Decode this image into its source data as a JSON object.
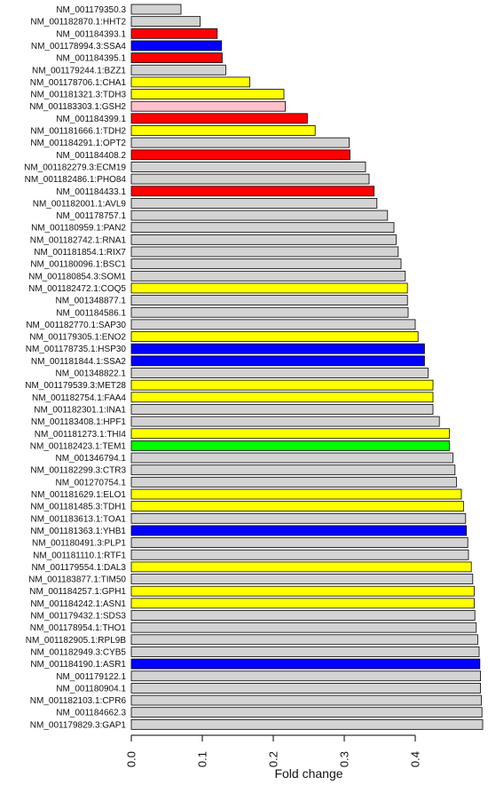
{
  "chart_data": {
    "type": "bar",
    "orientation": "horizontal",
    "xlabel": "Fold change",
    "xlim": [
      0,
      0.5
    ],
    "xticks": [
      "0.0",
      "0.1",
      "0.2",
      "0.3",
      "0.4"
    ],
    "grid": false,
    "legend": "none",
    "colors": {
      "gray": "#d3d3d3",
      "red": "#ff0000",
      "blue": "#0000ff",
      "yellow": "#ffff00",
      "pink": "#ffc0cb",
      "green": "#00ff00"
    },
    "bars": [
      {
        "label": "NM_001179350.3",
        "value": 0.07,
        "color": "gray"
      },
      {
        "label": "NM_001182870.1:HHT2",
        "value": 0.097,
        "color": "gray"
      },
      {
        "label": "NM_001184393.1",
        "value": 0.121,
        "color": "red"
      },
      {
        "label": "NM_001178994.3:SSA4",
        "value": 0.127,
        "color": "blue"
      },
      {
        "label": "NM_001184395.1",
        "value": 0.128,
        "color": "red"
      },
      {
        "label": "NM_001179244.1:BZZ1",
        "value": 0.133,
        "color": "gray"
      },
      {
        "label": "NM_001178706.1:CHA1",
        "value": 0.167,
        "color": "yellow"
      },
      {
        "label": "NM_001181321.3:TDH3",
        "value": 0.215,
        "color": "yellow"
      },
      {
        "label": "NM_001183303.1:GSH2",
        "value": 0.217,
        "color": "pink"
      },
      {
        "label": "NM_001184399.1",
        "value": 0.248,
        "color": "red"
      },
      {
        "label": "NM_001181666.1:TDH2",
        "value": 0.259,
        "color": "yellow"
      },
      {
        "label": "NM_001184291.1:OPT2",
        "value": 0.307,
        "color": "gray"
      },
      {
        "label": "NM_001184408.2",
        "value": 0.308,
        "color": "red"
      },
      {
        "label": "NM_001182279.3:ECM19",
        "value": 0.33,
        "color": "gray"
      },
      {
        "label": "NM_001182486.1:PHO84",
        "value": 0.335,
        "color": "gray"
      },
      {
        "label": "NM_001184433.1",
        "value": 0.342,
        "color": "red"
      },
      {
        "label": "NM_001182001.1:AVL9",
        "value": 0.346,
        "color": "gray"
      },
      {
        "label": "NM_001178757.1",
        "value": 0.361,
        "color": "gray"
      },
      {
        "label": "NM_001180959.1:PAN2",
        "value": 0.37,
        "color": "gray"
      },
      {
        "label": "NM_001182742.1:RNA1",
        "value": 0.373,
        "color": "gray"
      },
      {
        "label": "NM_001181854.1:RIX7",
        "value": 0.376,
        "color": "gray"
      },
      {
        "label": "NM_001180096.1:BSC1",
        "value": 0.38,
        "color": "gray"
      },
      {
        "label": "NM_001180854.3:SOM1",
        "value": 0.386,
        "color": "gray"
      },
      {
        "label": "NM_001182472.1:COQ5",
        "value": 0.389,
        "color": "yellow"
      },
      {
        "label": "NM_001348877.1",
        "value": 0.389,
        "color": "gray"
      },
      {
        "label": "NM_001184586.1",
        "value": 0.39,
        "color": "gray"
      },
      {
        "label": "NM_001182770.1:SAP30",
        "value": 0.4,
        "color": "gray"
      },
      {
        "label": "NM_001179305.1:ENO2",
        "value": 0.404,
        "color": "yellow"
      },
      {
        "label": "NM_001178735.1:HSP30",
        "value": 0.413,
        "color": "blue"
      },
      {
        "label": "NM_001181844.1:SSA2",
        "value": 0.413,
        "color": "blue"
      },
      {
        "label": "NM_001348822.1",
        "value": 0.418,
        "color": "gray"
      },
      {
        "label": "NM_001179539.3:MET28",
        "value": 0.425,
        "color": "yellow"
      },
      {
        "label": "NM_001182754.1:FAA4",
        "value": 0.425,
        "color": "yellow"
      },
      {
        "label": "NM_001182301.1:INA1",
        "value": 0.425,
        "color": "gray"
      },
      {
        "label": "NM_001183408.1:HPF1",
        "value": 0.434,
        "color": "gray"
      },
      {
        "label": "NM_001181273.1:THI4",
        "value": 0.448,
        "color": "yellow"
      },
      {
        "label": "NM_001182423.1:TEM1",
        "value": 0.448,
        "color": "green"
      },
      {
        "label": "NM_001346794.1",
        "value": 0.453,
        "color": "gray"
      },
      {
        "label": "NM_001182299.3:CTR3",
        "value": 0.456,
        "color": "gray"
      },
      {
        "label": "NM_001270754.1",
        "value": 0.458,
        "color": "gray"
      },
      {
        "label": "NM_001181629.1:ELO1",
        "value": 0.465,
        "color": "yellow"
      },
      {
        "label": "NM_001181485.3:TDH1",
        "value": 0.468,
        "color": "yellow"
      },
      {
        "label": "NM_001183613.1:TOA1",
        "value": 0.471,
        "color": "gray"
      },
      {
        "label": "NM_001181363.1:YHB1",
        "value": 0.472,
        "color": "blue"
      },
      {
        "label": "NM_001180491.3:PLP1",
        "value": 0.474,
        "color": "gray"
      },
      {
        "label": "NM_001181110.1:RTF1",
        "value": 0.475,
        "color": "gray"
      },
      {
        "label": "NM_001179554.1:DAL3",
        "value": 0.479,
        "color": "yellow"
      },
      {
        "label": "NM_001183877.1:TIM50",
        "value": 0.481,
        "color": "gray"
      },
      {
        "label": "NM_001184257.1:GPH1",
        "value": 0.483,
        "color": "yellow"
      },
      {
        "label": "NM_001184242.1:ASN1",
        "value": 0.483,
        "color": "yellow"
      },
      {
        "label": "NM_001179432.1:SDS3",
        "value": 0.484,
        "color": "gray"
      },
      {
        "label": "NM_001178954.1:THO1",
        "value": 0.486,
        "color": "gray"
      },
      {
        "label": "NM_001182905.1:RPL9B",
        "value": 0.488,
        "color": "gray"
      },
      {
        "label": "NM_001182949.3:CYB5",
        "value": 0.49,
        "color": "gray"
      },
      {
        "label": "NM_001184190.1:ASR1",
        "value": 0.491,
        "color": "blue"
      },
      {
        "label": "NM_001179122.1",
        "value": 0.492,
        "color": "gray"
      },
      {
        "label": "NM_001180904.1",
        "value": 0.492,
        "color": "gray"
      },
      {
        "label": "NM_001182103.1:CPR6",
        "value": 0.493,
        "color": "gray"
      },
      {
        "label": "NM_001184662.3",
        "value": 0.494,
        "color": "gray"
      },
      {
        "label": "NM_001179829.3:GAP1",
        "value": 0.495,
        "color": "gray"
      }
    ]
  }
}
